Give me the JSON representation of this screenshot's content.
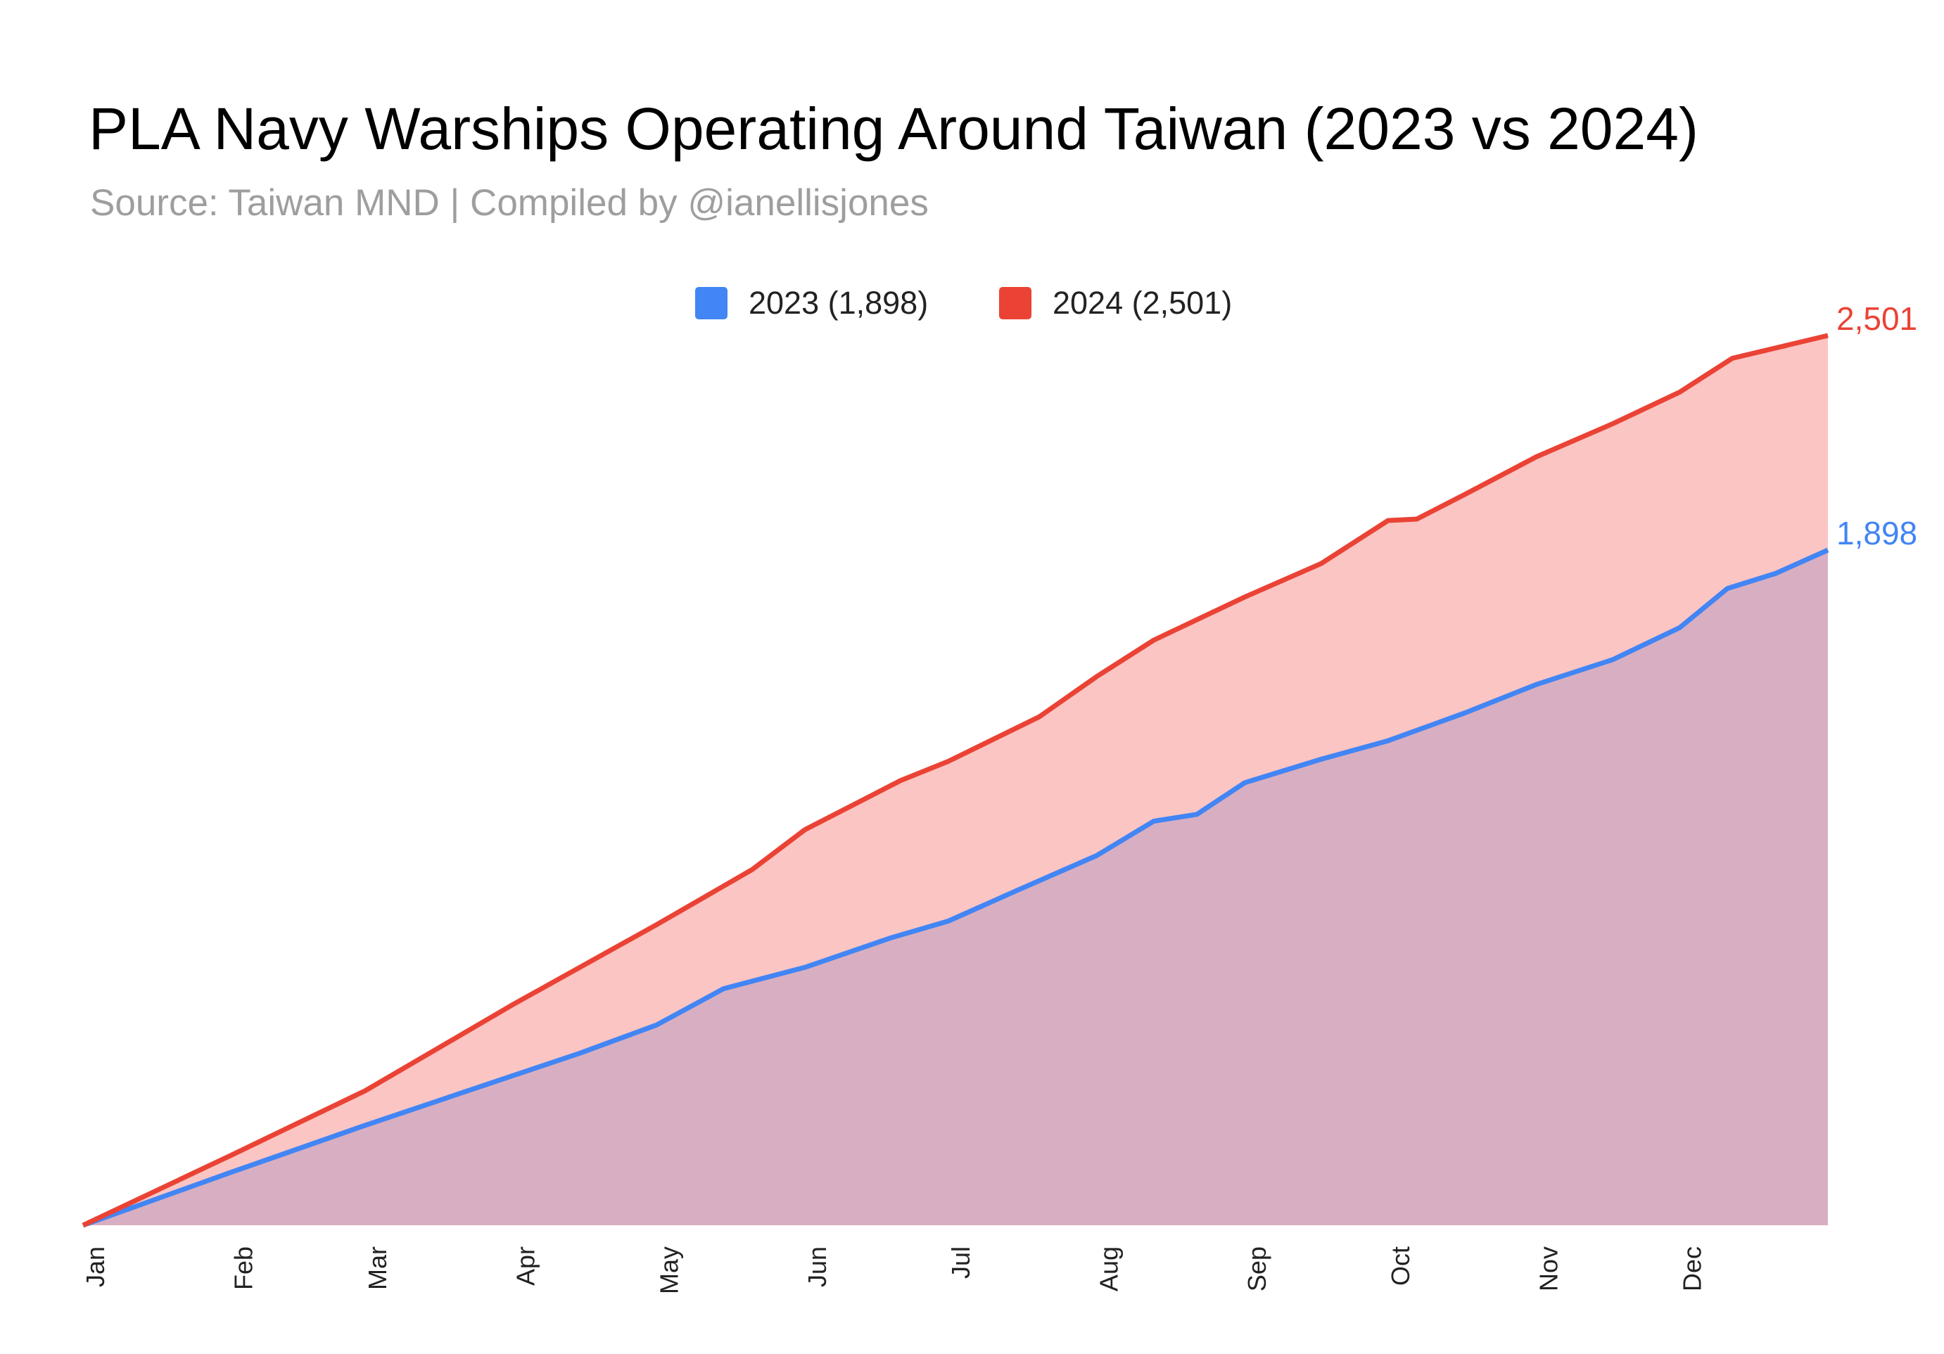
{
  "title": "PLA Navy Warships Operating Around Taiwan (2023 vs 2024)",
  "subtitle": "Source: Taiwan MND | Compiled by @ianellisjones",
  "colors": {
    "series_2023": "#4285f4",
    "series_2024": "#ea4335",
    "fill_2023": "#d8afc2",
    "fill_2024": "#fbc5c3"
  },
  "legend": [
    {
      "label": "2023 (1,898)",
      "color": "#4285f4"
    },
    {
      "label": "2024 (2,501)",
      "color": "#ea4335"
    }
  ],
  "end_labels": {
    "series_2023": "1,898",
    "series_2024": "2,501"
  },
  "chart_data": {
    "type": "area",
    "x_unit": "day of year",
    "x_range": [
      1,
      366
    ],
    "ylim": [
      0,
      2501
    ],
    "grid": false,
    "legend_position": "top-center",
    "month_labels": [
      "Jan",
      "Feb",
      "Mar",
      "Apr",
      "May",
      "Jun",
      "Jul",
      "Aug",
      "Sep",
      "Oct",
      "Nov",
      "Dec"
    ],
    "series": [
      {
        "name": "2023 (1,898)",
        "points": [
          [
            1,
            0
          ],
          [
            32,
            149
          ],
          [
            60,
            281
          ],
          [
            91,
            421
          ],
          [
            105,
            484
          ],
          [
            121,
            563
          ],
          [
            135,
            665
          ],
          [
            152,
            725
          ],
          [
            170,
            808
          ],
          [
            182,
            855
          ],
          [
            196,
            939
          ],
          [
            213,
            1039
          ],
          [
            225,
            1136
          ],
          [
            234,
            1155
          ],
          [
            244,
            1244
          ],
          [
            260,
            1310
          ],
          [
            274,
            1362
          ],
          [
            290,
            1440
          ],
          [
            305,
            1520
          ],
          [
            321,
            1590
          ],
          [
            335,
            1680
          ],
          [
            345,
            1790
          ],
          [
            355,
            1832
          ],
          [
            366,
            1898
          ]
        ]
      },
      {
        "name": "2024 (2,501)",
        "points": [
          [
            1,
            0
          ],
          [
            32,
            197
          ],
          [
            60,
            378
          ],
          [
            91,
            621
          ],
          [
            121,
            845
          ],
          [
            141,
            1000
          ],
          [
            152,
            1112
          ],
          [
            172,
            1250
          ],
          [
            182,
            1304
          ],
          [
            201,
            1429
          ],
          [
            213,
            1542
          ],
          [
            225,
            1645
          ],
          [
            244,
            1766
          ],
          [
            260,
            1860
          ],
          [
            274,
            1981
          ],
          [
            280,
            1985
          ],
          [
            290,
            2054
          ],
          [
            305,
            2160
          ],
          [
            321,
            2253
          ],
          [
            335,
            2342
          ],
          [
            346,
            2437
          ],
          [
            366,
            2501
          ]
        ]
      }
    ]
  }
}
